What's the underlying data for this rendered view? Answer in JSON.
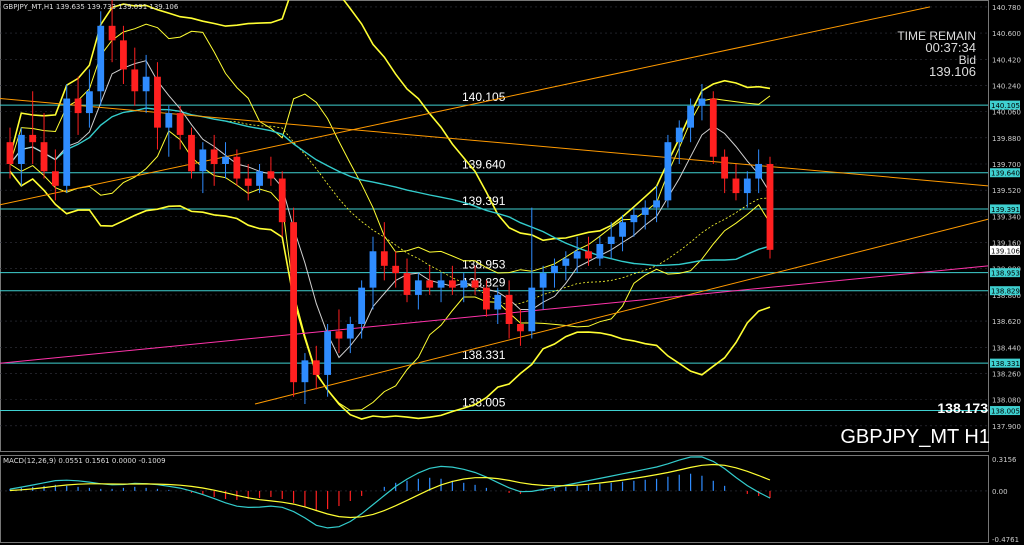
{
  "header": {
    "symbol": "GBPJPY_MT,H1",
    "ohlc": "139.635 139.733 139.091 139.106"
  },
  "info": {
    "time_remain_label": "TIME REMAIN",
    "time_remain_value": "00:37:34",
    "bid_label": "Bid",
    "bid_value": "139.106",
    "low_value": "138.173",
    "chart_symbol": "GBPJPY_MT H1"
  },
  "colors": {
    "background": "#000000",
    "grid": "#33353f",
    "bull": "#2f8cff",
    "bear": "#ff2020",
    "level_line": "#3fd0d0",
    "bollinger": "#ffff33",
    "trend_orange": "#ff9a00",
    "trend_magenta": "#ff33aa",
    "ma_cyan": "#33cccc",
    "ma_white": "#d0d0d0",
    "macd_line": "#33cccc",
    "signal_line": "#ffff33"
  },
  "chart_data": [
    {
      "type": "candlestick",
      "title": "GBPJPY_MT,H1",
      "ylim": [
        137.72,
        140.8
      ],
      "y_ticks": [
        "140.780",
        "140.600",
        "140.420",
        "140.240",
        "140.060",
        "139.880",
        "139.700",
        "139.520",
        "139.340",
        "139.160",
        "138.980",
        "138.800",
        "138.620",
        "138.440",
        "138.260",
        "138.080",
        "137.900"
      ],
      "levels": [
        {
          "price": 140.105,
          "label": "140.105",
          "tag": "140.105"
        },
        {
          "price": 139.64,
          "label": "139.640",
          "tag": "139.640"
        },
        {
          "price": 139.391,
          "label": "139.391",
          "tag": "139.391"
        },
        {
          "price": 138.953,
          "label": "138.953",
          "tag": "138.953"
        },
        {
          "price": 138.829,
          "label": "138.829",
          "tag": "138.829"
        },
        {
          "price": 138.331,
          "label": "138.331",
          "tag": "138.331"
        },
        {
          "price": 138.005,
          "label": "138.005",
          "tag": "138.005"
        }
      ],
      "current_price_tag": "139.106",
      "candles": [
        [
          139.85,
          139.95,
          139.6,
          139.7
        ],
        [
          139.7,
          139.95,
          139.55,
          139.9
        ],
        [
          139.9,
          140.2,
          139.7,
          139.85
        ],
        [
          139.85,
          140.05,
          139.6,
          139.65
        ],
        [
          139.65,
          139.8,
          139.45,
          139.55
        ],
        [
          139.55,
          140.25,
          139.5,
          140.15
        ],
        [
          140.15,
          140.3,
          139.9,
          140.05
        ],
        [
          140.05,
          140.35,
          139.95,
          140.2
        ],
        [
          140.2,
          140.75,
          140.1,
          140.65
        ],
        [
          140.65,
          140.85,
          140.4,
          140.55
        ],
        [
          140.55,
          140.65,
          140.25,
          140.35
        ],
        [
          140.35,
          140.5,
          140.1,
          140.2
        ],
        [
          140.2,
          140.45,
          140.05,
          140.3
        ],
        [
          140.3,
          140.4,
          139.8,
          139.95
        ],
        [
          139.95,
          140.1,
          139.75,
          140.05
        ],
        [
          140.05,
          140.1,
          139.8,
          139.9
        ],
        [
          139.9,
          139.95,
          139.6,
          139.65
        ],
        [
          139.65,
          139.85,
          139.5,
          139.8
        ],
        [
          139.8,
          139.9,
          139.55,
          139.7
        ],
        [
          139.7,
          139.85,
          139.6,
          139.75
        ],
        [
          139.75,
          139.8,
          139.55,
          139.6
        ],
        [
          139.6,
          139.7,
          139.45,
          139.55
        ],
        [
          139.55,
          139.7,
          139.5,
          139.65
        ],
        [
          139.65,
          139.75,
          139.55,
          139.6
        ],
        [
          139.6,
          139.65,
          139.2,
          139.3
        ],
        [
          139.3,
          139.4,
          138.1,
          138.2
        ],
        [
          138.2,
          138.4,
          138.05,
          138.35
        ],
        [
          138.35,
          138.45,
          138.15,
          138.25
        ],
        [
          138.25,
          138.6,
          138.1,
          138.55
        ],
        [
          138.55,
          138.7,
          138.4,
          138.5
        ],
        [
          138.5,
          138.65,
          138.4,
          138.6
        ],
        [
          138.6,
          138.9,
          138.5,
          138.85
        ],
        [
          138.85,
          139.2,
          138.7,
          139.1
        ],
        [
          139.1,
          139.3,
          138.9,
          139.0
        ],
        [
          139.0,
          139.1,
          138.85,
          138.95
        ],
        [
          138.95,
          139.05,
          138.75,
          138.8
        ],
        [
          138.8,
          138.95,
          138.7,
          138.9
        ],
        [
          138.9,
          139.0,
          138.8,
          138.85
        ],
        [
          138.85,
          138.95,
          138.75,
          138.9
        ],
        [
          138.9,
          139.0,
          138.8,
          138.85
        ],
        [
          138.85,
          138.95,
          138.75,
          138.9
        ],
        [
          138.9,
          139.0,
          138.8,
          138.85
        ],
        [
          138.85,
          138.9,
          138.65,
          138.7
        ],
        [
          138.7,
          138.85,
          138.6,
          138.8
        ],
        [
          138.8,
          138.9,
          138.5,
          138.6
        ],
        [
          138.6,
          138.7,
          138.45,
          138.55
        ],
        [
          138.55,
          139.4,
          138.5,
          138.85
        ],
        [
          138.85,
          139.0,
          138.7,
          138.95
        ],
        [
          138.95,
          139.05,
          138.85,
          139.0
        ],
        [
          139.0,
          139.1,
          138.9,
          139.05
        ],
        [
          139.05,
          139.2,
          138.95,
          139.1
        ],
        [
          139.1,
          139.2,
          139.0,
          139.05
        ],
        [
          139.05,
          139.2,
          139.0,
          139.15
        ],
        [
          139.15,
          139.3,
          139.05,
          139.2
        ],
        [
          139.2,
          139.35,
          139.1,
          139.3
        ],
        [
          139.3,
          139.4,
          139.2,
          139.35
        ],
        [
          139.35,
          139.45,
          139.25,
          139.4
        ],
        [
          139.4,
          139.55,
          139.3,
          139.45
        ],
        [
          139.45,
          139.9,
          139.4,
          139.85
        ],
        [
          139.85,
          140.0,
          139.7,
          139.95
        ],
        [
          139.95,
          140.15,
          139.85,
          140.1
        ],
        [
          140.1,
          140.25,
          140.0,
          140.15
        ],
        [
          140.15,
          140.2,
          139.7,
          139.75
        ],
        [
          139.75,
          139.8,
          139.5,
          139.6
        ],
        [
          139.6,
          139.7,
          139.45,
          139.5
        ],
        [
          139.5,
          139.65,
          139.4,
          139.6
        ],
        [
          139.6,
          139.8,
          139.5,
          139.7
        ],
        [
          139.7,
          139.75,
          139.05,
          139.11
        ]
      ]
    },
    {
      "type": "bar",
      "title": "MACD(12,26,9) 0.0551 0.1561 0.0000 -0.1009",
      "ylim": [
        -0.4761,
        0.3156
      ],
      "y_ticks": [
        "0.3156",
        "0.00",
        "-0.4761"
      ],
      "histogram": [
        0.02,
        0.03,
        0.04,
        0.05,
        0.06,
        0.05,
        0.04,
        0.03,
        0.02,
        0.02,
        0.03,
        0.04,
        0.03,
        0.02,
        0.01,
        0.0,
        -0.02,
        -0.04,
        -0.06,
        -0.08,
        -0.09,
        -0.08,
        -0.07,
        -0.06,
        -0.08,
        -0.12,
        -0.16,
        -0.2,
        -0.18,
        -0.15,
        -0.1,
        -0.05,
        0.0,
        0.04,
        0.08,
        0.1,
        0.12,
        0.13,
        0.12,
        0.1,
        0.08,
        0.06,
        0.03,
        0.0,
        -0.02,
        -0.03,
        0.0,
        0.02,
        0.03,
        0.04,
        0.05,
        0.06,
        0.07,
        0.08,
        0.09,
        0.1,
        0.11,
        0.12,
        0.14,
        0.16,
        0.17,
        0.15,
        0.1,
        0.05,
        0.0,
        -0.03,
        -0.05,
        -0.07
      ]
    }
  ]
}
